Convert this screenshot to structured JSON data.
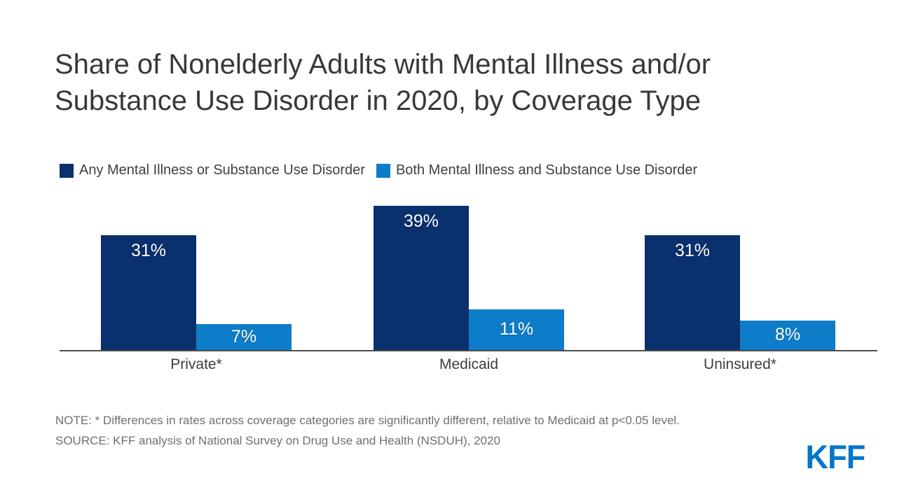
{
  "title": {
    "full": "Share of Nonelderly Adults with Mental Illness and/or Substance Use Disorder in 2020, by Coverage Type",
    "line1": "Share of Nonelderly Adults with Mental Illness and/or",
    "line2": "Substance Use Disorder in 2020, by Coverage Type"
  },
  "legend": {
    "items": [
      {
        "label": "Any Mental Illness or Substance Use Disorder",
        "color": "#0A306E"
      },
      {
        "label": "Both Mental Illness and Substance Use Disorder",
        "color": "#0E7DC9"
      }
    ]
  },
  "chart_data": {
    "type": "bar",
    "title": "Share of Nonelderly Adults with Mental Illness and/or Substance Use Disorder in 2020, by Coverage Type",
    "categories": [
      "Private*",
      "Medicaid",
      "Uninsured*"
    ],
    "series": [
      {
        "name": "Any Mental Illness or Substance Use Disorder",
        "color": "#0A306E",
        "values": [
          31,
          39,
          31
        ]
      },
      {
        "name": "Both Mental Illness and Substance Use Disorder",
        "color": "#0E7DC9",
        "values": [
          7,
          11,
          8
        ]
      }
    ],
    "value_suffix": "%",
    "data_labels": [
      "31%",
      "7%",
      "39%",
      "11%",
      "31%",
      "8%"
    ],
    "xlabel": "",
    "ylabel": "",
    "ylim": [
      0,
      42
    ],
    "grid": false,
    "y_axis_visible": false,
    "legend_position": "top-left"
  },
  "notes": {
    "note": "NOTE: * Differences in rates across coverage categories are significantly different, relative to Medicaid at p<0.05 level.",
    "source": "SOURCE: KFF analysis of National Survey on Drug Use and Health (NSDUH), 2020"
  },
  "branding": {
    "logo_text": "KFF",
    "logo_color": "#0077C8"
  }
}
